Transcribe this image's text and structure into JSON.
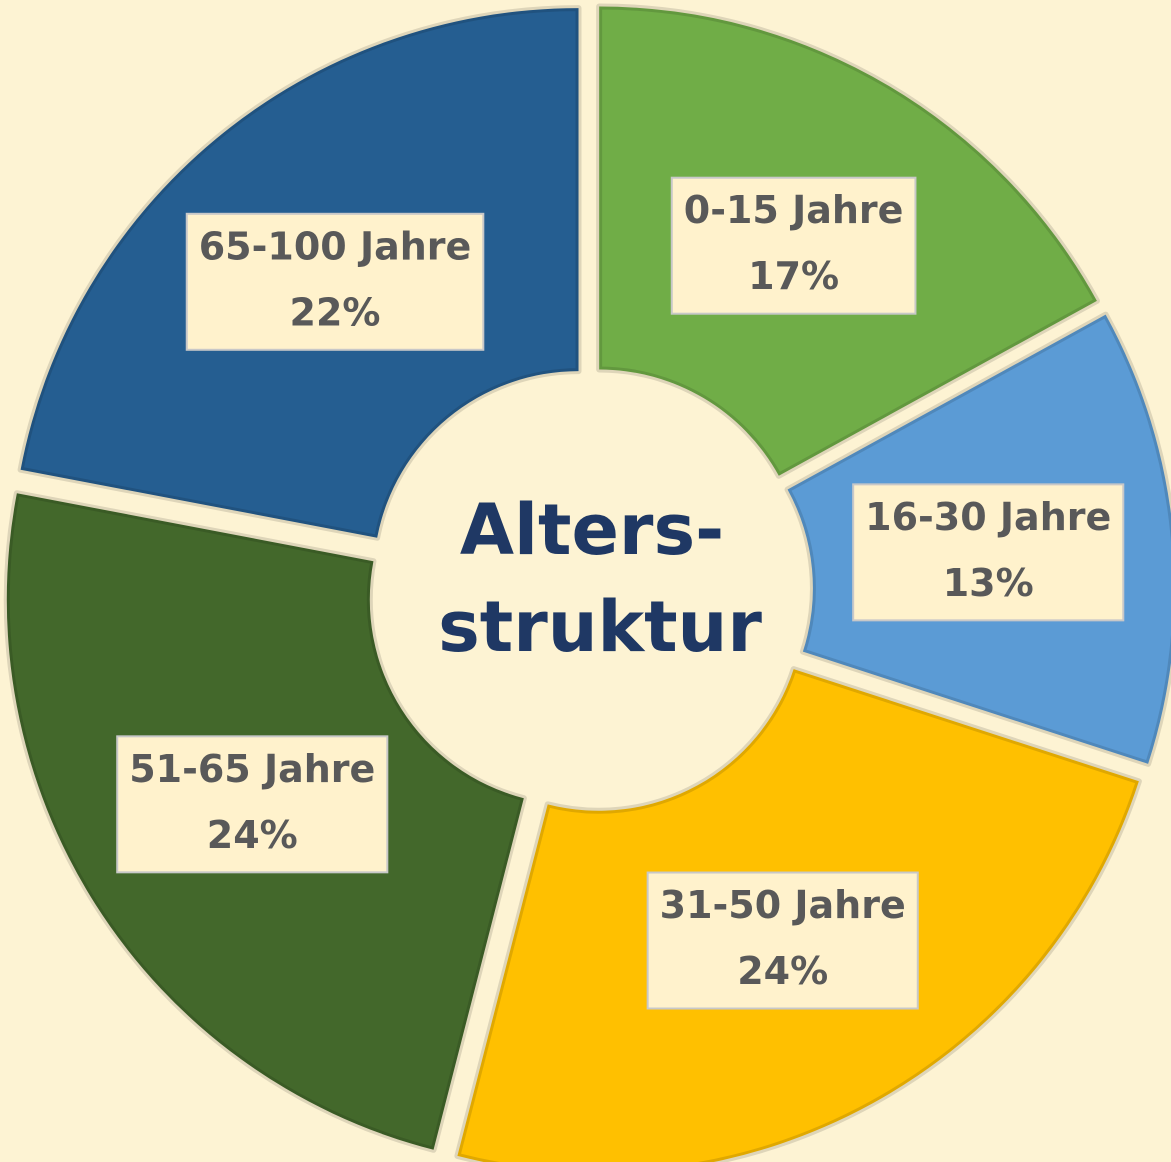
{
  "chart_data": {
    "type": "donut",
    "title": [
      "Alters-",
      "struktur"
    ],
    "categories": [
      "0-15 Jahre",
      "16-30 Jahre",
      "31-50 Jahre",
      "51-65 Jahre",
      "65-100 Jahre"
    ],
    "values": [
      17,
      13,
      24,
      24,
      22
    ],
    "value_labels": [
      "17%",
      "13%",
      "24%",
      "24%",
      "22%"
    ],
    "colors": [
      "#70ad47",
      "#5b9bd5",
      "#ffc000",
      "#43682b",
      "#255e91"
    ]
  }
}
